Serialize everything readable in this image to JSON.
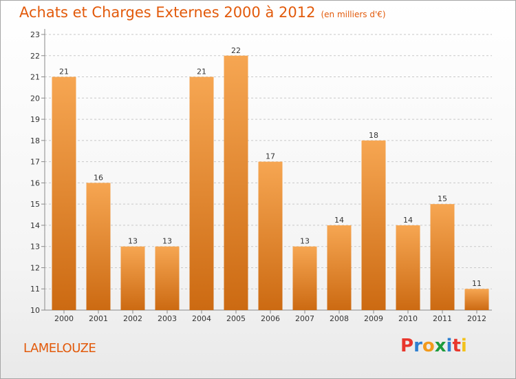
{
  "title": "Achats et Charges Externes 2000 à 2012",
  "subtitle": "(en milliers d'€)",
  "commune": "LAMELOUZE",
  "logo": {
    "text": "Proxiti",
    "letters": [
      {
        "ch": "P",
        "color": "#e8362c"
      },
      {
        "ch": "r",
        "color": "#2e7fd0"
      },
      {
        "ch": "o",
        "color": "#f29a1c"
      },
      {
        "ch": "x",
        "color": "#1d9b3c"
      },
      {
        "ch": "i",
        "color": "#2e7fd0"
      },
      {
        "ch": "t",
        "color": "#e8362c"
      },
      {
        "ch": "i",
        "color": "#f2c21c"
      }
    ]
  },
  "colors": {
    "bar_top": "#f6a652",
    "bar_bottom": "#cc6a12",
    "title": "#e25a0b",
    "grid": "#c8c8c8"
  },
  "chart_data": {
    "type": "bar",
    "title": "Achats et Charges Externes 2000 à 2012",
    "subtitle": "(en milliers d'€)",
    "categories": [
      "2000",
      "2001",
      "2002",
      "2003",
      "2004",
      "2005",
      "2006",
      "2007",
      "2008",
      "2009",
      "2010",
      "2011",
      "2012"
    ],
    "values": [
      21,
      16,
      13,
      13,
      21,
      22,
      17,
      13,
      14,
      18,
      14,
      15,
      11
    ],
    "ylim": [
      10,
      23
    ],
    "yticks": [
      10,
      11,
      12,
      13,
      14,
      15,
      16,
      17,
      18,
      19,
      20,
      21,
      22,
      23
    ],
    "grid": "horizontal dashed",
    "legend": "none"
  }
}
